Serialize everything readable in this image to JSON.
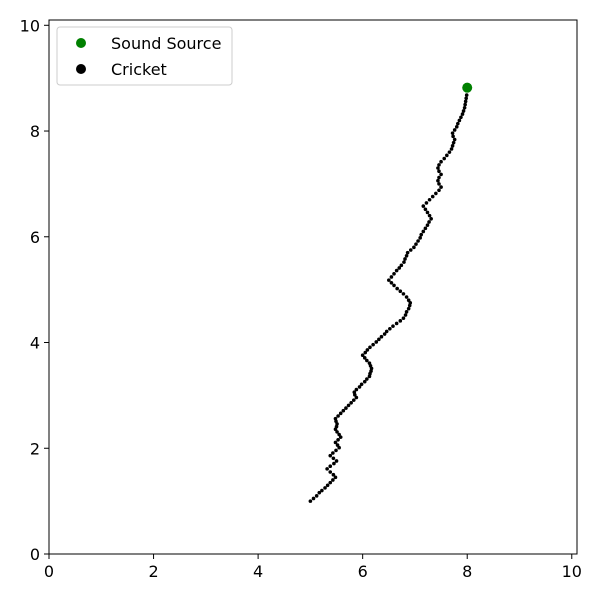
{
  "chart_data": {
    "type": "scatter",
    "xlim": [
      0,
      10.1
    ],
    "ylim": [
      0,
      10.1
    ],
    "xticks": [
      0,
      2,
      4,
      6,
      8,
      10
    ],
    "yticks": [
      0,
      2,
      4,
      6,
      8,
      10
    ],
    "grid": false,
    "legend_position": "top-left",
    "series": [
      {
        "name": "Sound Source",
        "color": "#008000",
        "points": [
          [
            8.0,
            8.82
          ]
        ]
      },
      {
        "name": "Cricket",
        "color": "#000000",
        "points": [
          [
            5.0,
            1.0
          ],
          [
            5.06,
            1.05
          ],
          [
            5.12,
            1.1
          ],
          [
            5.17,
            1.16
          ],
          [
            5.22,
            1.2
          ],
          [
            5.28,
            1.25
          ],
          [
            5.33,
            1.3
          ],
          [
            5.38,
            1.35
          ],
          [
            5.43,
            1.4
          ],
          [
            5.48,
            1.45
          ],
          [
            5.44,
            1.5
          ],
          [
            5.38,
            1.55
          ],
          [
            5.32,
            1.61
          ],
          [
            5.38,
            1.66
          ],
          [
            5.45,
            1.71
          ],
          [
            5.5,
            1.76
          ],
          [
            5.44,
            1.81
          ],
          [
            5.38,
            1.86
          ],
          [
            5.43,
            1.91
          ],
          [
            5.49,
            1.96
          ],
          [
            5.55,
            2.01
          ],
          [
            5.52,
            2.06
          ],
          [
            5.48,
            2.11
          ],
          [
            5.53,
            2.16
          ],
          [
            5.58,
            2.21
          ],
          [
            5.55,
            2.26
          ],
          [
            5.51,
            2.31
          ],
          [
            5.48,
            2.36
          ],
          [
            5.5,
            2.41
          ],
          [
            5.51,
            2.46
          ],
          [
            5.49,
            2.51
          ],
          [
            5.48,
            2.56
          ],
          [
            5.53,
            2.61
          ],
          [
            5.58,
            2.66
          ],
          [
            5.63,
            2.71
          ],
          [
            5.68,
            2.76
          ],
          [
            5.73,
            2.81
          ],
          [
            5.78,
            2.86
          ],
          [
            5.83,
            2.91
          ],
          [
            5.88,
            2.96
          ],
          [
            5.85,
            3.01
          ],
          [
            5.84,
            3.06
          ],
          [
            5.88,
            3.11
          ],
          [
            5.94,
            3.16
          ],
          [
            5.98,
            3.21
          ],
          [
            6.04,
            3.26
          ],
          [
            6.08,
            3.31
          ],
          [
            6.13,
            3.36
          ],
          [
            6.14,
            3.41
          ],
          [
            6.16,
            3.46
          ],
          [
            6.17,
            3.51
          ],
          [
            6.15,
            3.56
          ],
          [
            6.13,
            3.61
          ],
          [
            6.08,
            3.66
          ],
          [
            6.04,
            3.71
          ],
          [
            6.0,
            3.76
          ],
          [
            6.05,
            3.81
          ],
          [
            6.09,
            3.86
          ],
          [
            6.14,
            3.91
          ],
          [
            6.2,
            3.96
          ],
          [
            6.26,
            4.01
          ],
          [
            6.31,
            4.06
          ],
          [
            6.36,
            4.11
          ],
          [
            6.42,
            4.16
          ],
          [
            6.46,
            4.21
          ],
          [
            6.52,
            4.26
          ],
          [
            6.58,
            4.31
          ],
          [
            6.65,
            4.36
          ],
          [
            6.72,
            4.41
          ],
          [
            6.78,
            4.46
          ],
          [
            6.82,
            4.52
          ],
          [
            6.84,
            4.58
          ],
          [
            6.88,
            4.64
          ],
          [
            6.9,
            4.7
          ],
          [
            6.91,
            4.75
          ],
          [
            6.88,
            4.8
          ],
          [
            6.84,
            4.86
          ],
          [
            6.78,
            4.92
          ],
          [
            6.72,
            4.97
          ],
          [
            6.66,
            5.02
          ],
          [
            6.6,
            5.08
          ],
          [
            6.55,
            5.13
          ],
          [
            6.5,
            5.18
          ],
          [
            6.55,
            5.24
          ],
          [
            6.6,
            5.3
          ],
          [
            6.65,
            5.36
          ],
          [
            6.7,
            5.41
          ],
          [
            6.74,
            5.46
          ],
          [
            6.79,
            5.52
          ],
          [
            6.81,
            5.58
          ],
          [
            6.84,
            5.64
          ],
          [
            6.86,
            5.7
          ],
          [
            6.92,
            5.75
          ],
          [
            6.98,
            5.8
          ],
          [
            7.02,
            5.86
          ],
          [
            7.06,
            5.92
          ],
          [
            7.1,
            5.98
          ],
          [
            7.12,
            6.04
          ],
          [
            7.16,
            6.1
          ],
          [
            7.2,
            6.16
          ],
          [
            7.24,
            6.22
          ],
          [
            7.27,
            6.28
          ],
          [
            7.31,
            6.34
          ],
          [
            7.28,
            6.4
          ],
          [
            7.24,
            6.46
          ],
          [
            7.2,
            6.52
          ],
          [
            7.16,
            6.58
          ],
          [
            7.22,
            6.64
          ],
          [
            7.28,
            6.7
          ],
          [
            7.34,
            6.76
          ],
          [
            7.4,
            6.82
          ],
          [
            7.46,
            6.88
          ],
          [
            7.5,
            6.94
          ],
          [
            7.46,
            7.0
          ],
          [
            7.44,
            7.06
          ],
          [
            7.46,
            7.12
          ],
          [
            7.5,
            7.18
          ],
          [
            7.46,
            7.24
          ],
          [
            7.44,
            7.3
          ],
          [
            7.46,
            7.36
          ],
          [
            7.5,
            7.42
          ],
          [
            7.56,
            7.48
          ],
          [
            7.61,
            7.54
          ],
          [
            7.66,
            7.6
          ],
          [
            7.7,
            7.66
          ],
          [
            7.72,
            7.72
          ],
          [
            7.74,
            7.78
          ],
          [
            7.76,
            7.84
          ],
          [
            7.73,
            7.9
          ],
          [
            7.72,
            7.96
          ],
          [
            7.76,
            8.02
          ],
          [
            7.8,
            8.08
          ],
          [
            7.82,
            8.14
          ],
          [
            7.85,
            8.2
          ],
          [
            7.88,
            8.26
          ],
          [
            7.91,
            8.32
          ],
          [
            7.93,
            8.38
          ],
          [
            7.95,
            8.44
          ],
          [
            7.96,
            8.5
          ],
          [
            7.97,
            8.56
          ],
          [
            7.98,
            8.62
          ],
          [
            7.99,
            8.68
          ]
        ]
      }
    ]
  }
}
